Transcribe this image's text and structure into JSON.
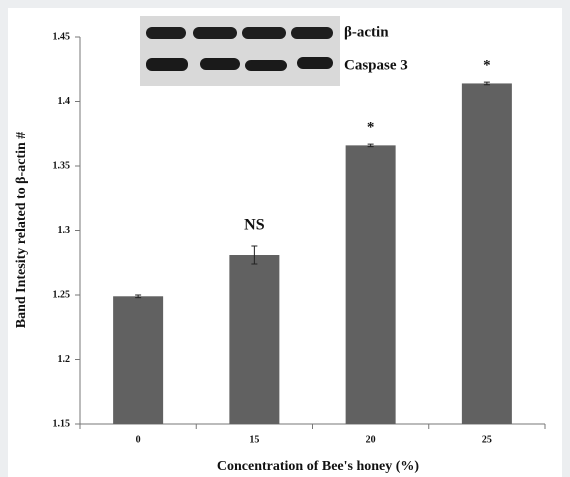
{
  "chart_data": {
    "type": "bar",
    "y_label": "Band Intesity related to β-actin #",
    "x_label": "Concentration of Bee's honey (%)",
    "categories": [
      "0",
      "15",
      "20",
      "25"
    ],
    "values": [
      1.249,
      1.281,
      1.366,
      1.414
    ],
    "errors": [
      0.001,
      0.007,
      0.001,
      0.001
    ],
    "annotations": [
      null,
      "NS",
      "*",
      "*"
    ],
    "color": "#616161",
    "ylim": [
      1.15,
      1.45
    ],
    "yticks": [
      1.15,
      1.2,
      1.25,
      1.3,
      1.35,
      1.4,
      1.45
    ],
    "inset_labels": [
      "β-actin",
      "Caspase 3"
    ]
  }
}
